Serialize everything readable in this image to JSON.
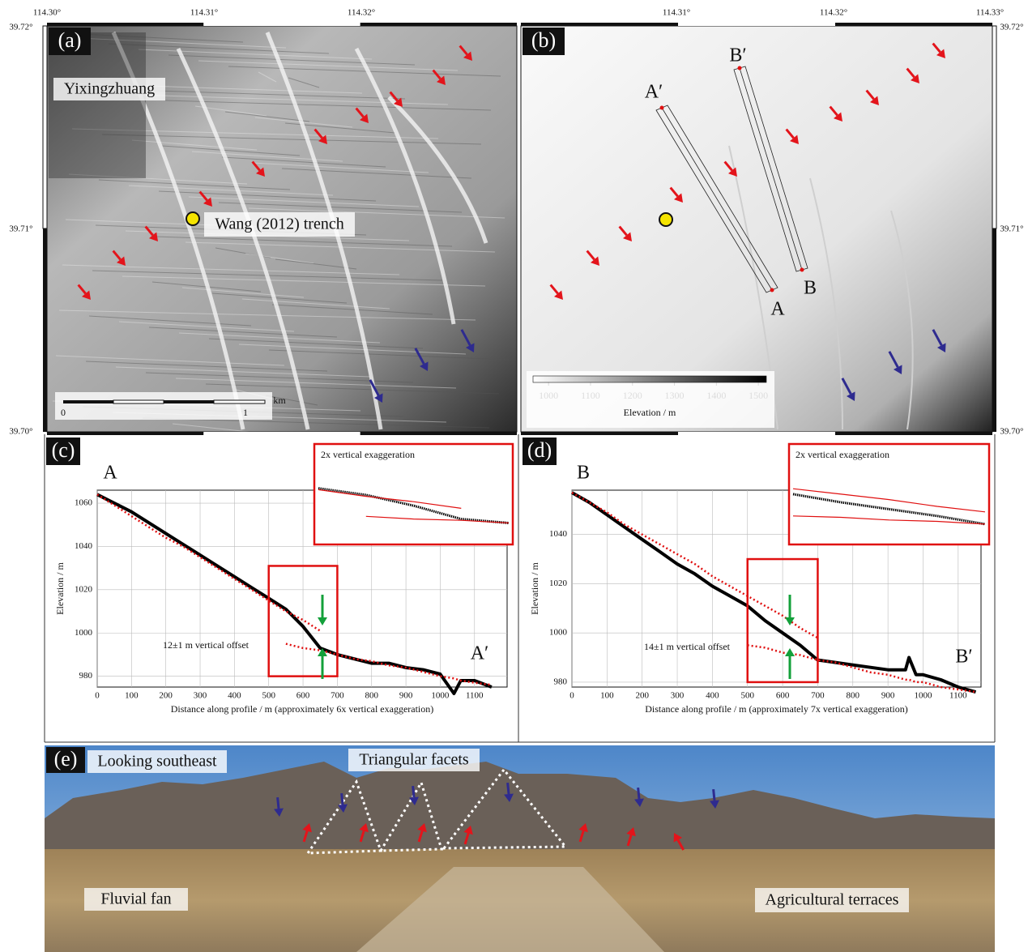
{
  "map_axes": {
    "top_labels": [
      "114.30°",
      "114.31°",
      "114.32°",
      "114.31°",
      "114.32°",
      "114.33°"
    ],
    "left_labels": [
      "39.72°",
      "39.71°",
      "39.70°"
    ],
    "right_labels": [
      "39.72°",
      "39.71°",
      "39.70°"
    ]
  },
  "panels": {
    "a": {
      "label": "(a)",
      "place": "Yixingzhuang",
      "trench": "Wang (2012) trench",
      "scale_unit": "km",
      "scale_start": "0",
      "scale_end": "1"
    },
    "b": {
      "label": "(b)",
      "profile_labels": [
        "A′",
        "B′",
        "A",
        "B"
      ],
      "colorbar": {
        "title": "Elevation / m",
        "ticks": [
          1000,
          1100,
          1200,
          1300,
          1400,
          1500
        ],
        "lim": [
          963,
          1519
        ]
      }
    },
    "e": {
      "label": "(e)",
      "annotations": [
        "Looking southeast",
        "Triangular facets",
        "Fluvial fan",
        "Agricultural terraces"
      ]
    }
  },
  "chart_data": [
    {
      "type": "line",
      "panel_label": "(c)",
      "start_label": "A",
      "end_label": "A′",
      "annotation": "12±1 m vertical offset",
      "inset_title": "2x vertical exaggeration",
      "x_label": "Distance along profile / m (approximately 6x vertical exaggeration)",
      "y_label": "Elevation / m",
      "x": [
        0,
        50,
        100,
        150,
        200,
        250,
        300,
        350,
        400,
        450,
        500,
        550,
        600,
        650,
        700,
        750,
        800,
        850,
        900,
        950,
        1000,
        1040,
        1060,
        1100,
        1150
      ],
      "series": [
        {
          "color": "#000000",
          "values": [
            1064,
            1060,
            1056,
            1051,
            1046,
            1041,
            1036,
            1031,
            1026,
            1021,
            1016,
            1011,
            1003,
            993,
            990,
            988,
            986,
            986,
            984,
            983,
            981,
            972,
            978,
            978,
            975
          ]
        },
        {
          "color": "#e01010",
          "values": [
            1064,
            1059,
            1054,
            1049,
            1044,
            1040,
            1035,
            1030,
            1025,
            1020,
            1015,
            1010,
            1006,
            1001,
            null,
            null,
            null,
            null,
            null,
            null,
            null,
            null,
            null,
            null,
            null
          ]
        },
        {
          "color": "#e01010",
          "values": [
            null,
            null,
            null,
            null,
            null,
            null,
            null,
            null,
            null,
            null,
            null,
            995,
            993,
            992,
            990,
            988,
            987,
            985,
            984,
            982,
            980,
            979,
            978,
            977,
            976
          ]
        }
      ],
      "xlim": [
        0,
        1195
      ],
      "ylim": [
        975,
        1066
      ],
      "xticks": [
        0,
        100,
        200,
        300,
        400,
        500,
        600,
        700,
        800,
        900,
        1000,
        1100
      ],
      "yticks": [
        980,
        1000,
        1020,
        1040,
        1060
      ],
      "grid": true,
      "zoom": {
        "xlim": [
          500,
          700
        ],
        "ylim": [
          980,
          1031
        ],
        "color": "#e01010"
      }
    },
    {
      "type": "line",
      "panel_label": "(d)",
      "start_label": "B",
      "end_label": "B′",
      "annotation": "14±1 m vertical offset",
      "inset_title": "2x vertical exaggeration",
      "x_label": "Distance along profile / m (approximately 7x vertical exaggeration)",
      "y_label": "Elevation / m",
      "x": [
        0,
        50,
        100,
        150,
        200,
        250,
        300,
        350,
        400,
        450,
        500,
        550,
        600,
        650,
        700,
        750,
        800,
        850,
        900,
        950,
        960,
        980,
        1000,
        1050,
        1100,
        1150
      ],
      "series": [
        {
          "color": "#000000",
          "values": [
            1057,
            1053,
            1048,
            1043,
            1038,
            1033,
            1028,
            1024,
            1019,
            1015,
            1011,
            1005,
            1000,
            995,
            989,
            988,
            987,
            986,
            985,
            985,
            990,
            983,
            983,
            981,
            978,
            976
          ]
        },
        {
          "color": "#e01010",
          "values": [
            1057,
            1053,
            1049,
            1044,
            1040,
            1036,
            1032,
            1028,
            1023,
            1019,
            1015,
            1011,
            1007,
            1002,
            998,
            null,
            null,
            null,
            null,
            null,
            null,
            null,
            null,
            null,
            null,
            null
          ]
        },
        {
          "color": "#e01010",
          "values": [
            null,
            null,
            null,
            null,
            null,
            null,
            null,
            null,
            null,
            null,
            995,
            994,
            992,
            991,
            989,
            988,
            986,
            984,
            983,
            981,
            981,
            980,
            980,
            978,
            977,
            976
          ]
        }
      ],
      "xlim": [
        0,
        1165
      ],
      "ylim": [
        978,
        1058
      ],
      "xticks": [
        0,
        100,
        200,
        300,
        400,
        500,
        600,
        700,
        800,
        900,
        1000,
        1100
      ],
      "yticks": [
        980,
        1000,
        1020,
        1040
      ],
      "grid": true,
      "zoom": {
        "xlim": [
          500,
          700
        ],
        "ylim": [
          980,
          1030
        ],
        "color": "#e01010"
      }
    }
  ]
}
